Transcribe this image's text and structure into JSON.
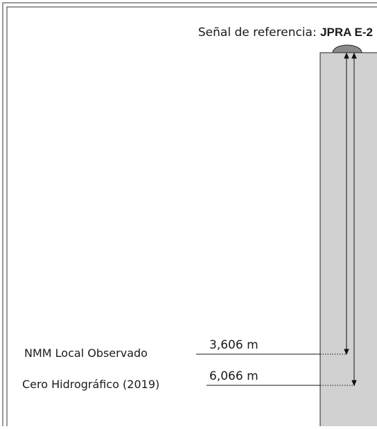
{
  "header": {
    "title_prefix": "Señal de referencia:",
    "title_code": "JPRA E-2"
  },
  "levels": [
    {
      "label": "NMM Local Observado",
      "value": "3,606 m"
    },
    {
      "label": "Cero Hidrográfico (2019)",
      "value": "6,066 m"
    }
  ]
}
